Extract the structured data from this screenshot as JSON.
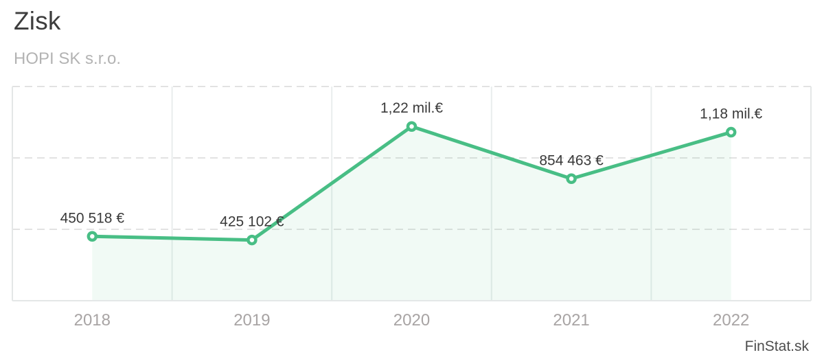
{
  "header": {
    "title": "Zisk",
    "subtitle": "HOPI SK s.r.o."
  },
  "watermark": {
    "label": "FinStat.sk"
  },
  "colors": {
    "line": "#48be85",
    "marker_fill": "#ffffff",
    "area_fill": "#48be85",
    "area_fill_opacity": 0.08,
    "grid_dashed": "#e2e2e2",
    "grid_vertical": "#e9eded",
    "plot_border": "#e4e7e7",
    "data_label": "#3a3a3a",
    "axis_label": "#a8a4a4",
    "title": "#3d3d3d",
    "subtitle": "#b3b3b3",
    "watermark": "#4d4d4d"
  },
  "chart_data": {
    "type": "line",
    "title": "Zisk",
    "subtitle": "HOPI SK s.r.o.",
    "categories": [
      "2018",
      "2019",
      "2020",
      "2021",
      "2022"
    ],
    "values": [
      450518,
      425102,
      1220000,
      854463,
      1180000
    ],
    "point_labels": [
      "450 518 €",
      "425 102 €",
      "1,22 mil.€",
      "854 463 €",
      "1,18 mil.€"
    ],
    "xlabel": "",
    "ylabel": "",
    "ylim": [
      0,
      1500000
    ],
    "gridline_step": 500000,
    "grid": "horizontal-dashed-and-vertical-solid",
    "legend": "none",
    "y_tick_labels_visible": false,
    "area_fill_between_first_and_last_point": true
  }
}
